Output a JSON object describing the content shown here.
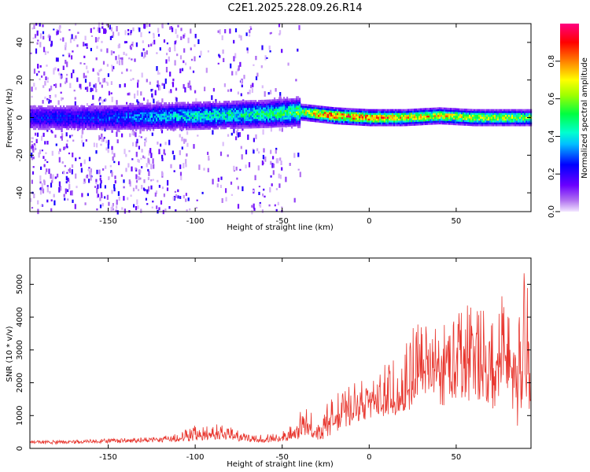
{
  "title": "C2E1.2025.228.09.26.R14",
  "chart_data": [
    {
      "type": "heatmap",
      "xlabel": "Height of straight line (km)",
      "ylabel": "Frequency (Hz)",
      "xlim": [
        -195,
        93
      ],
      "ylim": [
        -50,
        50
      ],
      "xticks": [
        -150,
        -100,
        -50,
        0,
        50
      ],
      "yticks": [
        -40,
        -20,
        0,
        20,
        40
      ],
      "description_series": "spectral ridge near 0 Hz; strongest (red) between -35 and 90 km",
      "ridge": {
        "x": [
          -195,
          -150,
          -100,
          -60,
          -40,
          -30,
          -20,
          0,
          20,
          40,
          60,
          80,
          93
        ],
        "center_hz": [
          0,
          0,
          1,
          2,
          3,
          2,
          1,
          0,
          0,
          1,
          0,
          0,
          0
        ],
        "peak_amplitude": [
          0.25,
          0.3,
          0.45,
          0.5,
          0.6,
          0.85,
          0.9,
          0.85,
          0.8,
          0.75,
          0.7,
          0.7,
          0.6
        ]
      },
      "colorbar": {
        "label": "Normalized spectral amplitude",
        "range": [
          0,
          1
        ],
        "ticks": [
          "0.0",
          "0.2",
          "0.4",
          "0.6",
          "0.8"
        ]
      }
    },
    {
      "type": "line",
      "xlabel": "Height of straight line (km)",
      "ylabel": "SNR (10 * v/v)",
      "xlim": [
        -195,
        93
      ],
      "ylim": [
        0,
        5800
      ],
      "xticks": [
        -150,
        -100,
        -50,
        0,
        50
      ],
      "yticks": [
        0,
        1000,
        2000,
        3000,
        4000,
        5000
      ],
      "color": "#e8362e",
      "x": [
        -195,
        -180,
        -160,
        -140,
        -120,
        -110,
        -100,
        -90,
        -80,
        -70,
        -60,
        -50,
        -45,
        -40,
        -35,
        -30,
        -25,
        -20,
        -10,
        0,
        10,
        20,
        25,
        30,
        35,
        40,
        50,
        60,
        70,
        80,
        85,
        90,
        93
      ],
      "values": [
        200,
        200,
        220,
        250,
        280,
        300,
        360,
        420,
        400,
        300,
        250,
        300,
        380,
        550,
        700,
        450,
        750,
        1000,
        1200,
        1400,
        1500,
        1600,
        2000,
        2200,
        2400,
        2300,
        2500,
        2700,
        2400,
        2600,
        2200,
        2300,
        2400
      ],
      "upper_envelope": [
        250,
        250,
        280,
        320,
        360,
        500,
        700,
        800,
        650,
        420,
        420,
        550,
        700,
        1100,
        1300,
        700,
        1300,
        1700,
        2000,
        2200,
        2600,
        3300,
        3700,
        3900,
        4000,
        3700,
        4300,
        4700,
        4400,
        5300,
        4100,
        5700,
        4700
      ],
      "lower_envelope": [
        120,
        130,
        150,
        170,
        190,
        200,
        220,
        260,
        240,
        200,
        180,
        180,
        200,
        250,
        400,
        250,
        300,
        500,
        700,
        900,
        1000,
        1000,
        1200,
        1400,
        1700,
        1300,
        1300,
        1500,
        1200,
        1000,
        600,
        1100,
        1200
      ]
    }
  ]
}
